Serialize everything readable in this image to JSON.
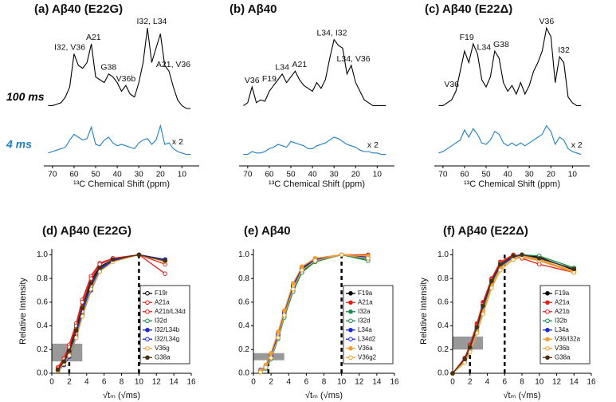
{
  "chart_data": [
    {
      "type": "line",
      "title": "(a) Aβ40 (E22G)",
      "xlabel": "¹³C Chemical Shift (ppm)",
      "xlim": [
        74,
        2
      ],
      "ylim": [
        0,
        100
      ],
      "xticks": [
        70,
        60,
        50,
        40,
        30,
        20,
        10
      ],
      "x": [
        72,
        70,
        68,
        66,
        64,
        62,
        60,
        58,
        56,
        54,
        52,
        50,
        48,
        46,
        44,
        42,
        40,
        38,
        36,
        34,
        32,
        30,
        28,
        26,
        24,
        22,
        20,
        18,
        16,
        14,
        12,
        10,
        8,
        6
      ],
      "series": [
        {
          "name": "100 ms",
          "color": "#000000",
          "values": [
            42,
            42,
            43,
            44,
            48,
            55,
            78,
            70,
            68,
            72,
            85,
            62,
            60,
            58,
            64,
            62,
            58,
            52,
            56,
            50,
            48,
            58,
            72,
            96,
            72,
            82,
            92,
            70,
            66,
            55,
            46,
            42,
            40,
            40
          ]
        },
        {
          "name": "4 ms",
          "color": "#1f7fc4",
          "values": [
            9,
            10,
            11,
            12,
            13,
            18,
            22,
            20,
            18,
            19,
            27,
            15,
            14,
            18,
            20,
            16,
            14,
            15,
            14,
            13,
            12,
            16,
            18,
            19,
            15,
            18,
            28,
            15,
            16,
            12,
            10,
            9,
            8,
            8
          ]
        }
      ],
      "annotations": [
        {
          "text": "I32, V36",
          "x": 62
        },
        {
          "text": "A21",
          "x": 51
        },
        {
          "text": "G38",
          "x": 44
        },
        {
          "text": "V36b",
          "x": 36
        },
        {
          "text": "I32, L34",
          "x": 24
        },
        {
          "text": "A21, V36",
          "x": 14
        },
        {
          "text": "x 2",
          "x": 12,
          "series": 1
        }
      ]
    },
    {
      "type": "line",
      "title": "(b) Aβ40",
      "xlabel": "¹³C Chemical Shift (ppm)",
      "xlim": [
        74,
        2
      ],
      "ylim": [
        0,
        100
      ],
      "xticks": [
        70,
        60,
        50,
        40,
        30,
        20,
        10
      ],
      "x": [
        72,
        70,
        68,
        66,
        64,
        62,
        60,
        58,
        56,
        54,
        52,
        50,
        48,
        46,
        44,
        42,
        40,
        38,
        36,
        34,
        32,
        30,
        28,
        26,
        24,
        22,
        20,
        18,
        16,
        14,
        12,
        10,
        8,
        6
      ],
      "series": [
        {
          "color": "#000000",
          "values": [
            42,
            44,
            55,
            44,
            46,
            45,
            52,
            56,
            60,
            64,
            58,
            62,
            66,
            60,
            56,
            54,
            52,
            58,
            54,
            60,
            75,
            88,
            84,
            82,
            64,
            70,
            58,
            52,
            46,
            44,
            42,
            42,
            42,
            42
          ]
        },
        {
          "color": "#1f7fc4",
          "values": [
            8,
            8,
            10,
            9,
            9,
            10,
            12,
            13,
            15,
            14,
            13,
            17,
            16,
            15,
            14,
            12,
            12,
            14,
            15,
            16,
            18,
            20,
            19,
            17,
            15,
            14,
            13,
            11,
            10,
            10,
            9,
            9,
            8,
            8
          ]
        }
      ],
      "annotations": [
        {
          "text": "V36",
          "x": 68
        },
        {
          "text": "F19",
          "x": 60
        },
        {
          "text": "L34",
          "x": 54
        },
        {
          "text": "A21",
          "x": 46
        },
        {
          "text": "L34, I32",
          "x": 31
        },
        {
          "text": "L34, V36",
          "x": 21
        },
        {
          "text": "x 2",
          "x": 12,
          "series": 1
        }
      ]
    },
    {
      "type": "line",
      "title": "(c) Aβ40 (E22Δ)",
      "xlabel": "¹³C Chemical Shift (ppm)",
      "xlim": [
        74,
        2
      ],
      "ylim": [
        0,
        100
      ],
      "xticks": [
        70,
        60,
        50,
        40,
        30,
        20,
        10
      ],
      "x": [
        72,
        70,
        68,
        66,
        64,
        62,
        60,
        58,
        56,
        54,
        52,
        50,
        48,
        46,
        44,
        42,
        40,
        38,
        36,
        34,
        32,
        30,
        28,
        26,
        24,
        22,
        20,
        18,
        16,
        14,
        12,
        10,
        8,
        6
      ],
      "series": [
        {
          "color": "#000000",
          "values": [
            42,
            42,
            44,
            46,
            52,
            66,
            80,
            72,
            85,
            78,
            60,
            55,
            62,
            80,
            75,
            58,
            52,
            56,
            50,
            58,
            50,
            56,
            66,
            72,
            80,
            96,
            90,
            58,
            76,
            72,
            48,
            44,
            42,
            42
          ]
        },
        {
          "color": "#1f7fc4",
          "values": [
            9,
            10,
            12,
            14,
            16,
            18,
            25,
            20,
            26,
            22,
            16,
            15,
            18,
            24,
            22,
            16,
            14,
            16,
            14,
            16,
            14,
            16,
            18,
            20,
            22,
            28,
            24,
            15,
            20,
            18,
            12,
            10,
            9,
            8
          ]
        }
      ],
      "annotations": [
        {
          "text": "V36",
          "x": 66
        },
        {
          "text": "F19",
          "x": 59
        },
        {
          "text": "L34",
          "x": 51
        },
        {
          "text": "G38",
          "x": 43
        },
        {
          "text": "V36",
          "x": 22
        },
        {
          "text": "I32",
          "x": 14
        },
        {
          "text": "x 2",
          "x": 8,
          "series": 1
        }
      ]
    },
    {
      "type": "line",
      "title": "(d) Aβ40 (E22G)",
      "xlabel": "√tₘ (√ms)",
      "ylabel": "Relative Intensity",
      "markers": true,
      "legend": "lower right",
      "xlim": [
        0,
        16
      ],
      "ylim": [
        0,
        1.05
      ],
      "xticks": [
        0,
        2,
        4,
        6,
        8,
        10,
        12,
        14,
        16
      ],
      "yticks": [
        {
          "value": 0,
          "label": "0.0"
        },
        0.2,
        0.4,
        0.6,
        0.8,
        {
          "value": 1,
          "label": "1.0"
        }
      ],
      "shaded": {
        "x": [
          0,
          3.5
        ],
        "y": [
          0.1,
          0.25
        ]
      },
      "vlines": [
        {
          "x": 10,
          "y": 1.0
        },
        {
          "x": 2,
          "y": 0.12
        }
      ],
      "x": [
        0.7,
        1.4,
        2,
        2.8,
        3.5,
        4.5,
        5.5,
        7,
        10,
        13
      ],
      "series": [
        {
          "name": "F19r",
          "color": "#000000",
          "filled": false,
          "values": [
            0.03,
            0.1,
            0.2,
            0.38,
            0.56,
            0.78,
            0.9,
            0.96,
            1.0,
            0.96
          ]
        },
        {
          "name": "A21a",
          "color": "#e0201b",
          "filled": false,
          "values": [
            0.05,
            0.13,
            0.24,
            0.42,
            0.62,
            0.82,
            0.93,
            0.97,
            1.0,
            0.84
          ]
        },
        {
          "name": "A21b/L34d",
          "color": "#e0201b",
          "filled": false,
          "values": [
            0.04,
            0.12,
            0.22,
            0.4,
            0.6,
            0.8,
            0.92,
            0.97,
            1.0,
            0.92
          ]
        },
        {
          "name": "I32d",
          "color": "#1a8a4a",
          "filled": false,
          "values": [
            0.02,
            0.08,
            0.16,
            0.32,
            0.5,
            0.72,
            0.87,
            0.95,
            1.0,
            0.95
          ]
        },
        {
          "name": "I32/L34b",
          "color": "#1a2bd6",
          "filled": true,
          "values": [
            0.02,
            0.07,
            0.14,
            0.3,
            0.48,
            0.7,
            0.86,
            0.95,
            1.0,
            0.96
          ]
        },
        {
          "name": "I32/L34g",
          "color": "#1a2bd6",
          "filled": false,
          "values": [
            0.03,
            0.09,
            0.18,
            0.34,
            0.52,
            0.74,
            0.88,
            0.95,
            1.0,
            0.95
          ]
        },
        {
          "name": "V36g",
          "color": "#f0a030",
          "filled": false,
          "values": [
            0.02,
            0.08,
            0.15,
            0.3,
            0.48,
            0.71,
            0.86,
            0.94,
            1.0,
            0.94
          ]
        },
        {
          "name": "G38a",
          "color": "#4a3010",
          "filled": true,
          "values": [
            0.03,
            0.1,
            0.19,
            0.36,
            0.55,
            0.76,
            0.89,
            0.96,
            1.0,
            0.95
          ]
        }
      ]
    },
    {
      "type": "line",
      "title": "(e) Aβ40",
      "xlabel": "√tₘ (√ms)",
      "markers": true,
      "legend": "lower right",
      "xlim": [
        0,
        16
      ],
      "ylim": [
        0,
        1.05
      ],
      "xticks": [
        0,
        2,
        4,
        6,
        8,
        10,
        12,
        14,
        16
      ],
      "yticks": [
        {
          "value": 0,
          "label": "0.0"
        },
        0.2,
        0.4,
        0.6,
        0.8,
        {
          "value": 1,
          "label": "1.0"
        }
      ],
      "shaded": {
        "x": [
          0,
          3.5
        ],
        "y": [
          0.11,
          0.17
        ]
      },
      "vlines": [
        {
          "x": 10,
          "y": 1.0
        },
        {
          "x": 1.7,
          "y": 0.1
        }
      ],
      "x": [
        0.8,
        1.4,
        2,
        2.8,
        3.5,
        4.5,
        5.5,
        7,
        10,
        13
      ],
      "series": [
        {
          "name": "F19a",
          "color": "#000000",
          "filled": true,
          "values": [
            0.02,
            0.05,
            0.14,
            0.32,
            0.5,
            0.73,
            0.88,
            0.96,
            1.0,
            0.98
          ]
        },
        {
          "name": "A21a",
          "color": "#e0201b",
          "filled": true,
          "values": [
            0.02,
            0.06,
            0.15,
            0.34,
            0.52,
            0.75,
            0.9,
            0.97,
            1.0,
            1.0
          ]
        },
        {
          "name": "I32a",
          "color": "#1a8a4a",
          "filled": true,
          "values": [
            0.01,
            0.05,
            0.13,
            0.3,
            0.48,
            0.7,
            0.86,
            0.94,
            1.0,
            0.96
          ]
        },
        {
          "name": "I32d",
          "color": "#1a8a4a",
          "filled": false,
          "values": [
            0.01,
            0.04,
            0.12,
            0.29,
            0.47,
            0.69,
            0.85,
            0.94,
            1.0,
            0.95
          ]
        },
        {
          "name": "L34a",
          "color": "#1a2bd6",
          "filled": true,
          "values": [
            0.02,
            0.05,
            0.14,
            0.31,
            0.5,
            0.72,
            0.87,
            0.95,
            1.0,
            0.97
          ]
        },
        {
          "name": "L34d2",
          "color": "#1a2bd6",
          "filled": false,
          "values": [
            0.03,
            0.06,
            0.16,
            0.33,
            0.51,
            0.74,
            0.89,
            0.96,
            1.0,
            0.98
          ]
        },
        {
          "name": "V36a",
          "color": "#f0a030",
          "filled": true,
          "values": [
            0.02,
            0.07,
            0.17,
            0.35,
            0.53,
            0.76,
            0.9,
            0.97,
            1.0,
            0.99
          ]
        },
        {
          "name": "V36g2",
          "color": "#f0a030",
          "filled": false,
          "values": [
            0.01,
            0.05,
            0.13,
            0.3,
            0.49,
            0.71,
            0.87,
            0.95,
            1.0,
            0.97
          ]
        }
      ]
    },
    {
      "type": "line",
      "title": "(f) Aβ40 (E22Δ)",
      "xlabel": "√tₘ (√ms)",
      "ylabel": "Relative Intensity",
      "markers": true,
      "legend": "lower right",
      "xlim": [
        0,
        16
      ],
      "ylim": [
        0,
        1.05
      ],
      "xticks": [
        0,
        2,
        4,
        6,
        8,
        10,
        12,
        14,
        16
      ],
      "yticks": [
        {
          "value": 0,
          "label": "0.0"
        },
        0.2,
        0.4,
        0.6,
        0.8,
        {
          "value": 1,
          "label": "1.0"
        }
      ],
      "shaded": {
        "x": [
          0,
          3.5
        ],
        "y": [
          0.2,
          0.31
        ]
      },
      "vlines": [
        {
          "x": 6,
          "y": 1.0
        },
        {
          "x": 2,
          "y": 0.22
        }
      ],
      "x": [
        0,
        1.4,
        2,
        2.8,
        3.5,
        4.5,
        5.5,
        7,
        8,
        10,
        14
      ],
      "series": [
        {
          "name": "F19a",
          "color": "#000000",
          "filled": true,
          "values": [
            0,
            0.12,
            0.22,
            0.4,
            0.58,
            0.78,
            0.92,
            0.99,
            1.0,
            0.98,
            0.87
          ]
        },
        {
          "name": "A21a",
          "color": "#e0201b",
          "filled": true,
          "values": [
            0,
            0.13,
            0.24,
            0.42,
            0.6,
            0.8,
            0.94,
            1.0,
            0.98,
            0.95,
            0.86
          ]
        },
        {
          "name": "A21b",
          "color": "#e0201b",
          "filled": false,
          "values": [
            0,
            0.12,
            0.23,
            0.4,
            0.58,
            0.79,
            0.93,
            0.99,
            0.97,
            0.92,
            0.85
          ]
        },
        {
          "name": "I32b",
          "color": "#1a8a4a",
          "filled": false,
          "values": [
            0,
            0.1,
            0.2,
            0.36,
            0.54,
            0.75,
            0.9,
            0.98,
            1.0,
            0.99,
            0.89
          ]
        },
        {
          "name": "L34a",
          "color": "#1a2bd6",
          "filled": true,
          "values": [
            0,
            0.11,
            0.21,
            0.38,
            0.56,
            0.77,
            0.91,
            0.98,
            1.0,
            0.97,
            0.88
          ]
        },
        {
          "name": "V36/I32a",
          "color": "#f0a030",
          "filled": true,
          "values": [
            0,
            0.1,
            0.19,
            0.35,
            0.52,
            0.74,
            0.89,
            0.97,
            0.99,
            0.96,
            0.86
          ]
        },
        {
          "name": "V36b",
          "color": "#f0a030",
          "filled": false,
          "values": [
            0,
            0.09,
            0.18,
            0.34,
            0.5,
            0.72,
            0.87,
            0.96,
            0.98,
            0.95,
            0.85
          ]
        },
        {
          "name": "G38a",
          "color": "#4a3010",
          "filled": true,
          "values": [
            0,
            0.12,
            0.22,
            0.39,
            0.57,
            0.78,
            0.92,
            0.99,
            1.0,
            0.97,
            0.88
          ]
        }
      ]
    }
  ]
}
